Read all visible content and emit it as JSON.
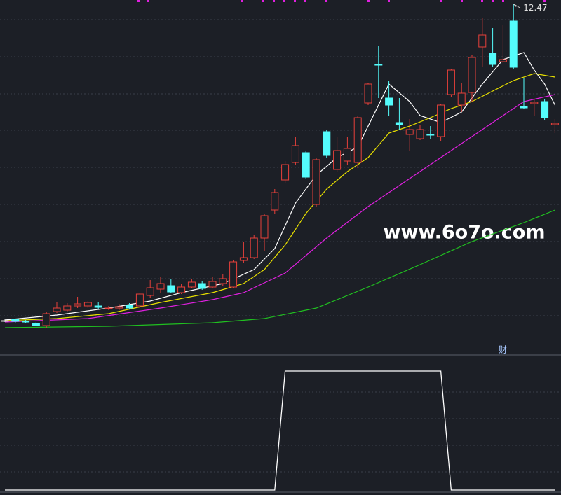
{
  "chart_data": [
    {
      "type": "candlestick",
      "open": [
        3.42,
        3.46,
        3.4,
        3.34,
        3.28,
        3.68,
        3.72,
        3.84,
        3.84,
        3.84,
        3.76,
        3.78,
        3.86,
        3.84,
        4.14,
        4.32,
        4.42,
        4.22,
        4.38,
        4.48,
        4.38,
        4.48,
        4.38,
        5.14,
        5.22,
        5.78,
        6.58,
        7.44,
        7.94,
        8.22,
        6.74,
        8.82,
        7.74,
        7.98,
        7.94,
        9.64,
        10.74,
        9.78,
        9.08,
        8.74,
        8.62,
        8.74,
        8.68,
        9.88,
        9.58,
        9.94,
        11.24,
        11.06,
        10.82,
        11.98,
        9.54,
        9.62,
        9.68,
        9.02
      ],
      "high": [
        3.46,
        3.48,
        3.44,
        3.38,
        3.68,
        3.94,
        3.92,
        4.1,
        3.98,
        3.94,
        3.84,
        3.9,
        3.92,
        4.22,
        4.58,
        4.68,
        4.62,
        4.48,
        4.62,
        4.54,
        4.66,
        4.74,
        5.14,
        5.68,
        5.86,
        6.48,
        7.18,
        7.98,
        8.68,
        8.28,
        8.08,
        8.88,
        8.68,
        8.68,
        9.28,
        10.22,
        11.28,
        10.28,
        9.78,
        9.18,
        9.02,
        8.98,
        9.62,
        10.62,
        10.22,
        11.02,
        12.08,
        11.78,
        11.88,
        12.47,
        10.34,
        9.74,
        9.74,
        9.18
      ],
      "low": [
        3.38,
        3.36,
        3.34,
        3.26,
        3.22,
        3.64,
        3.68,
        3.78,
        3.78,
        3.74,
        3.72,
        3.72,
        3.74,
        3.78,
        4.08,
        4.22,
        4.2,
        4.18,
        4.34,
        4.3,
        4.34,
        4.42,
        4.34,
        5.08,
        5.18,
        5.42,
        6.48,
        7.34,
        7.88,
        7.48,
        6.68,
        8.08,
        7.68,
        7.88,
        7.78,
        9.58,
        9.78,
        9.28,
        8.88,
        8.28,
        8.58,
        8.62,
        8.54,
        9.82,
        9.38,
        9.68,
        10.68,
        10.68,
        10.78,
        10.62,
        9.48,
        9.28,
        9.14,
        8.78
      ],
      "close": [
        3.42,
        3.4,
        3.38,
        3.28,
        3.62,
        3.78,
        3.84,
        3.9,
        3.94,
        3.8,
        3.78,
        3.82,
        3.78,
        4.18,
        4.36,
        4.48,
        4.24,
        4.38,
        4.52,
        4.34,
        4.54,
        4.62,
        5.1,
        5.22,
        5.78,
        6.42,
        7.08,
        7.88,
        8.42,
        7.52,
        8.02,
        8.14,
        8.28,
        8.34,
        9.22,
        10.18,
        10.72,
        9.58,
        9.02,
        8.88,
        8.88,
        8.72,
        9.58,
        10.58,
        9.92,
        10.94,
        11.58,
        10.74,
        10.88,
        10.66,
        9.5,
        9.66,
        9.22,
        9.06
      ],
      "up_color": "#e8403a",
      "down_color": "#54fcfc",
      "flat_color": "#e0e0e0",
      "series": [
        {
          "color": "#ffffff",
          "x": [
            0,
            5,
            10,
            14,
            17,
            21,
            24,
            26,
            28,
            30,
            32,
            34,
            36,
            37,
            39,
            40,
            42,
            44,
            46,
            48,
            50,
            51,
            52,
            53
          ],
          "values": [
            3.44,
            3.58,
            3.78,
            3.98,
            4.22,
            4.48,
            4.88,
            5.48,
            6.78,
            7.58,
            8.08,
            8.38,
            9.58,
            10.18,
            9.68,
            9.28,
            9.08,
            9.38,
            10.18,
            10.88,
            11.08,
            10.58,
            10.18,
            9.58
          ]
        },
        {
          "color": "#e8e000",
          "x": [
            0,
            5,
            10,
            15,
            20,
            23,
            25,
            27,
            29,
            31,
            33,
            35,
            37,
            39,
            41,
            43,
            45,
            47,
            49,
            51,
            53
          ],
          "values": [
            3.42,
            3.48,
            3.62,
            3.94,
            4.22,
            4.48,
            4.88,
            5.58,
            6.48,
            7.18,
            7.68,
            8.08,
            8.78,
            8.98,
            9.22,
            9.48,
            9.68,
            9.98,
            10.28,
            10.48,
            10.38
          ]
        },
        {
          "color": "#e020e0",
          "x": [
            0,
            8,
            15,
            20,
            23,
            27,
            31,
            35,
            39,
            43,
            47,
            50,
            53
          ],
          "values": [
            3.38,
            3.48,
            3.78,
            4.02,
            4.22,
            4.78,
            5.78,
            6.68,
            7.48,
            8.28,
            9.08,
            9.68,
            9.88
          ]
        },
        {
          "color": "#20c020",
          "x": [
            0,
            10,
            20,
            25,
            30,
            35,
            40,
            45,
            50,
            53
          ],
          "values": [
            3.22,
            3.26,
            3.36,
            3.48,
            3.78,
            4.38,
            5.02,
            5.68,
            6.22,
            6.58
          ]
        }
      ],
      "ylim": [
        2.98,
        12.58
      ],
      "watermark": "www.6o7o.com",
      "marker": "财"
    },
    {
      "type": "line",
      "color": "#ffffff",
      "values": [
        0,
        0,
        0,
        0,
        0,
        0,
        0,
        0,
        0,
        0,
        0,
        0,
        0,
        0,
        0,
        0,
        0,
        0,
        0,
        0,
        0,
        0,
        0,
        0,
        0,
        0,
        0,
        1,
        1,
        1,
        1,
        1,
        1,
        1,
        1,
        1,
        1,
        1,
        1,
        1,
        1,
        1,
        1,
        0,
        0,
        0,
        0,
        0,
        0,
        0,
        0,
        0,
        0,
        0
      ],
      "ylim": [
        0,
        1.1
      ]
    }
  ]
}
